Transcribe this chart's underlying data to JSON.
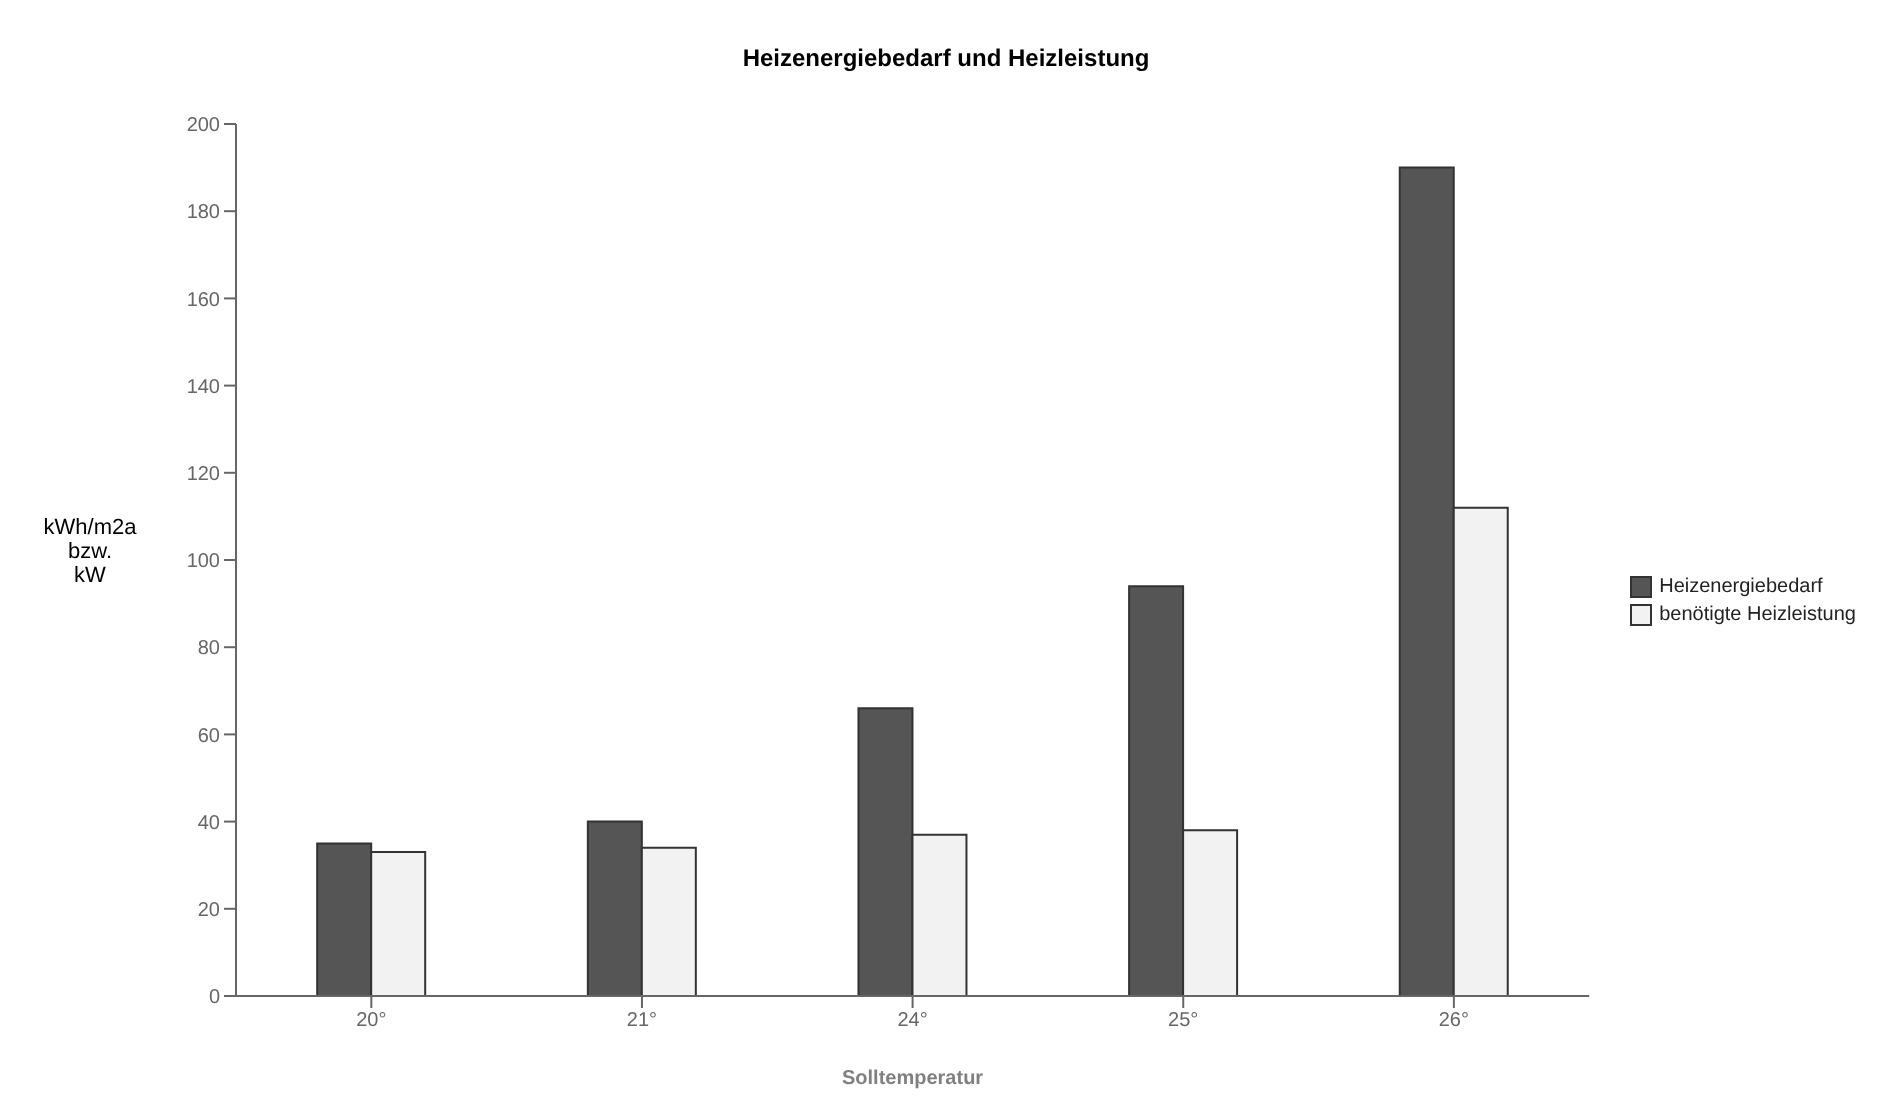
{
  "chart_data": {
    "type": "bar",
    "title": "Heizenergiebedarf und Heizleistung",
    "xlabel": "Solltemperatur",
    "ylabel": "kWh/m2a bzw. kW",
    "categories": [
      "20°",
      "21°",
      "24°",
      "25°",
      "26°"
    ],
    "series": [
      {
        "name": "Heizenergiebedarf",
        "color": "#555555",
        "values": [
          35,
          40,
          66,
          94,
          190
        ]
      },
      {
        "name": "benötigte Heizleistung",
        "color": "#f2f2f2",
        "values": [
          33,
          34,
          37,
          38,
          112
        ]
      }
    ],
    "ylim": [
      0,
      200
    ],
    "yticks": [
      0,
      20,
      40,
      60,
      80,
      100,
      120,
      140,
      160,
      180,
      200
    ],
    "grid": false,
    "legend": "right"
  }
}
